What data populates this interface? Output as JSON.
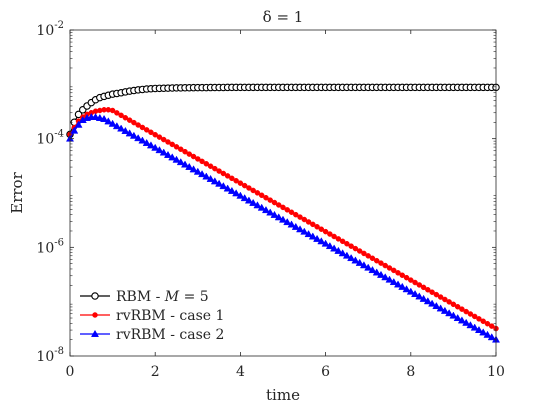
{
  "chart_data": {
    "type": "line",
    "title": "δ = 1",
    "xlabel": "time",
    "ylabel": "Error",
    "xlim": [
      0,
      10
    ],
    "ylim": [
      1e-08,
      0.01
    ],
    "yscale": "log",
    "xticks": [
      "0",
      "2",
      "4",
      "6",
      "8",
      "10"
    ],
    "yticks": [
      {
        "base": "10",
        "exp": "-2",
        "value": 0.01
      },
      {
        "base": "10",
        "exp": "-4",
        "value": 0.0001
      },
      {
        "base": "10",
        "exp": "-6",
        "value": 1e-06
      },
      {
        "base": "10",
        "exp": "-8",
        "value": 1e-08
      }
    ],
    "grid": false,
    "legend_position": "bottom-left",
    "series": [
      {
        "name": "RBM - M = 5",
        "legend_prefix": "RBM - ",
        "legend_italic": "M",
        "legend_suffix": " = 5",
        "color": "#000000",
        "marker": "circle",
        "x": [
          0.0,
          0.1,
          0.2,
          0.3,
          0.4,
          0.5,
          0.6,
          0.7,
          0.8,
          0.9,
          1.0,
          1.2,
          1.4,
          1.6,
          1.8,
          2.0,
          2.5,
          3,
          4,
          5,
          6,
          7,
          8,
          9,
          10
        ],
        "y": [
          0.00012,
          0.0002,
          0.00028,
          0.00034,
          0.0004,
          0.00046,
          0.00052,
          0.00057,
          0.0006,
          0.00063,
          0.00066,
          0.0007,
          0.00075,
          0.00079,
          0.00082,
          0.00084,
          0.00086,
          0.00087,
          0.00088,
          0.00088,
          0.00088,
          0.00088,
          0.00088,
          0.00088,
          0.00088
        ]
      },
      {
        "name": "rvRBM - case 1",
        "legend_prefix": "rvRBM - case 1",
        "legend_italic": "",
        "legend_suffix": "",
        "color": "#ff0000",
        "marker": "dot",
        "x": [
          0.0,
          0.1,
          0.2,
          0.3,
          0.4,
          0.5,
          0.6,
          0.7,
          0.8,
          0.9,
          1.0,
          10
        ],
        "y": [
          0.00012,
          0.00016,
          0.00021,
          0.00025,
          0.00028,
          0.0003,
          0.00032,
          0.00033,
          0.00034,
          0.00034,
          0.00033,
          3.2e-08
        ]
      },
      {
        "name": "rvRBM - case 2",
        "legend_prefix": "rvRBM - case 2",
        "legend_italic": "",
        "legend_suffix": "",
        "color": "#0000ff",
        "marker": "triangle",
        "x": [
          0.0,
          0.1,
          0.2,
          0.3,
          0.4,
          0.5,
          0.6,
          0.7,
          0.8,
          10
        ],
        "y": [
          0.0001,
          0.00014,
          0.00018,
          0.00022,
          0.00024,
          0.00025,
          0.00025,
          0.00024,
          0.00023,
          2e-08
        ]
      }
    ]
  }
}
